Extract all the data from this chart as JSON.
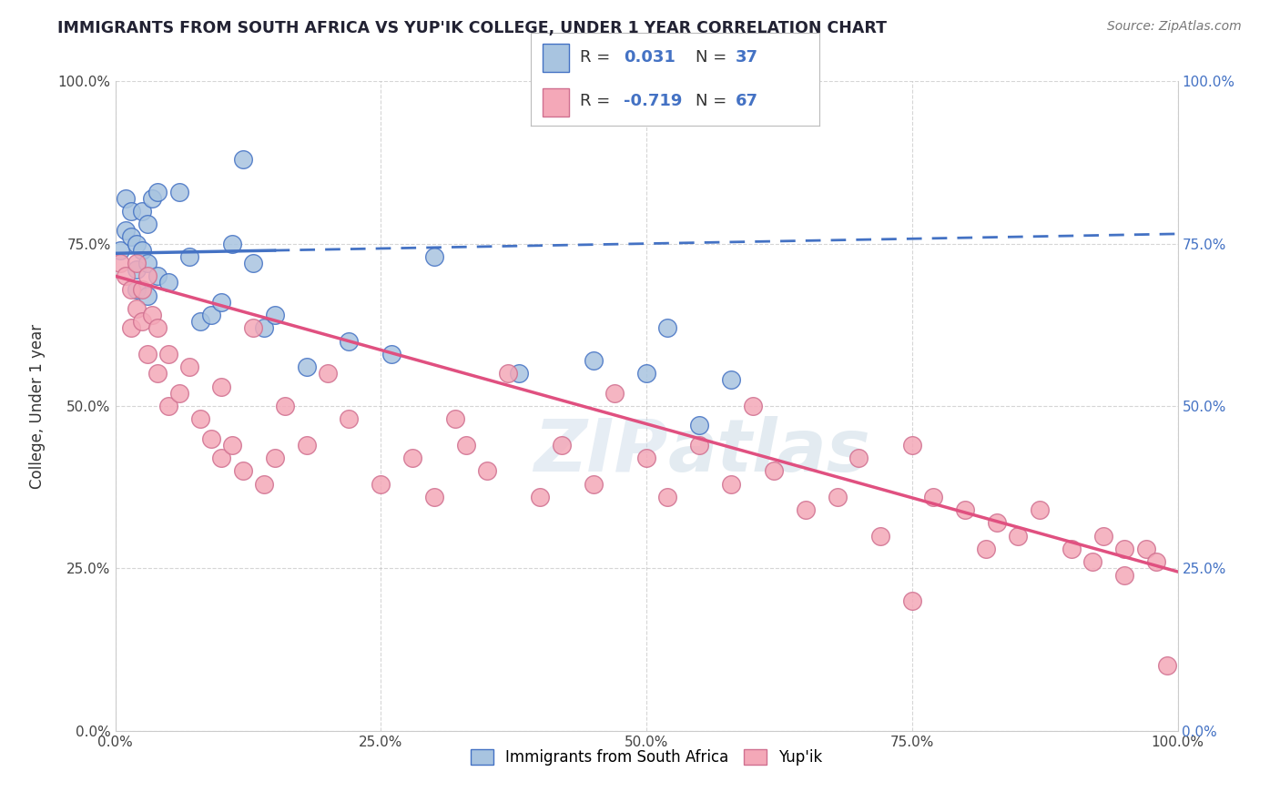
{
  "title": "IMMIGRANTS FROM SOUTH AFRICA VS YUP'IK COLLEGE, UNDER 1 YEAR CORRELATION CHART",
  "source": "Source: ZipAtlas.com",
  "ylabel": "College, Under 1 year",
  "xlabel": "",
  "legend_label1": "Immigrants from South Africa",
  "legend_label2": "Yup'ik",
  "r1": 0.031,
  "n1": 37,
  "r2": -0.719,
  "n2": 67,
  "xlim": [
    0.0,
    1.0
  ],
  "ylim": [
    0.0,
    1.0
  ],
  "xticks": [
    0.0,
    0.25,
    0.5,
    0.75,
    1.0
  ],
  "yticks": [
    0.0,
    0.25,
    0.5,
    0.75,
    1.0
  ],
  "xtick_labels": [
    "0.0%",
    "25.0%",
    "50.0%",
    "75.0%",
    "100.0%"
  ],
  "ytick_labels": [
    "0.0%",
    "25.0%",
    "50.0%",
    "75.0%",
    "100.0%"
  ],
  "color_blue": "#a8c4e0",
  "color_pink": "#f4a8b8",
  "line_blue": "#4472c4",
  "line_pink": "#e05080",
  "background": "#ffffff",
  "grid_color": "#bbbbbb",
  "title_color": "#222233",
  "source_color": "#777777",
  "r_value_color": "#4472c4",
  "blue_scatter_x": [
    0.005,
    0.01,
    0.01,
    0.015,
    0.015,
    0.02,
    0.02,
    0.02,
    0.025,
    0.025,
    0.03,
    0.03,
    0.03,
    0.035,
    0.04,
    0.04,
    0.05,
    0.06,
    0.07,
    0.08,
    0.09,
    0.1,
    0.11,
    0.12,
    0.13,
    0.14,
    0.15,
    0.18,
    0.22,
    0.26,
    0.3,
    0.38,
    0.45,
    0.5,
    0.52,
    0.55,
    0.58
  ],
  "blue_scatter_y": [
    0.74,
    0.82,
    0.77,
    0.8,
    0.76,
    0.75,
    0.71,
    0.68,
    0.8,
    0.74,
    0.78,
    0.72,
    0.67,
    0.82,
    0.7,
    0.83,
    0.69,
    0.83,
    0.73,
    0.63,
    0.64,
    0.66,
    0.75,
    0.88,
    0.72,
    0.62,
    0.64,
    0.56,
    0.6,
    0.58,
    0.73,
    0.55,
    0.57,
    0.55,
    0.62,
    0.47,
    0.54
  ],
  "pink_scatter_x": [
    0.005,
    0.01,
    0.015,
    0.015,
    0.02,
    0.02,
    0.025,
    0.025,
    0.03,
    0.03,
    0.035,
    0.04,
    0.04,
    0.05,
    0.05,
    0.06,
    0.07,
    0.08,
    0.09,
    0.1,
    0.1,
    0.11,
    0.12,
    0.13,
    0.14,
    0.15,
    0.16,
    0.18,
    0.2,
    0.22,
    0.25,
    0.28,
    0.3,
    0.32,
    0.33,
    0.35,
    0.37,
    0.4,
    0.42,
    0.45,
    0.47,
    0.5,
    0.52,
    0.55,
    0.58,
    0.6,
    0.62,
    0.65,
    0.68,
    0.7,
    0.72,
    0.75,
    0.77,
    0.8,
    0.82,
    0.83,
    0.85,
    0.87,
    0.9,
    0.92,
    0.93,
    0.95,
    0.97,
    0.98,
    0.99,
    0.95,
    0.75
  ],
  "pink_scatter_y": [
    0.72,
    0.7,
    0.68,
    0.62,
    0.65,
    0.72,
    0.63,
    0.68,
    0.58,
    0.7,
    0.64,
    0.62,
    0.55,
    0.58,
    0.5,
    0.52,
    0.56,
    0.48,
    0.45,
    0.53,
    0.42,
    0.44,
    0.4,
    0.62,
    0.38,
    0.42,
    0.5,
    0.44,
    0.55,
    0.48,
    0.38,
    0.42,
    0.36,
    0.48,
    0.44,
    0.4,
    0.55,
    0.36,
    0.44,
    0.38,
    0.52,
    0.42,
    0.36,
    0.44,
    0.38,
    0.5,
    0.4,
    0.34,
    0.36,
    0.42,
    0.3,
    0.44,
    0.36,
    0.34,
    0.28,
    0.32,
    0.3,
    0.34,
    0.28,
    0.26,
    0.3,
    0.24,
    0.28,
    0.26,
    0.1,
    0.28,
    0.2
  ],
  "blue_line_solid_end": 0.15,
  "blue_line_dashed_start": 0.15,
  "blue_line_y_at_0": 0.735,
  "blue_line_y_at_1": 0.765,
  "pink_line_y_at_0": 0.7,
  "pink_line_y_at_1": 0.245
}
